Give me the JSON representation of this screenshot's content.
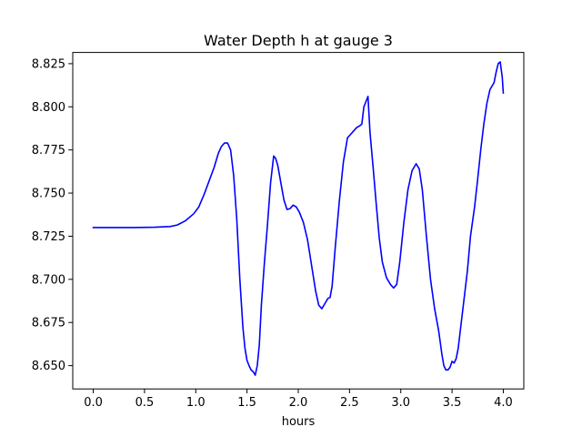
{
  "chart_data": {
    "type": "line",
    "title": "Water Depth h at gauge 3",
    "xlabel": "hours",
    "ylabel": "",
    "xlim": [
      -0.2,
      4.2
    ],
    "ylim": [
      8.6365,
      8.8315
    ],
    "grid": false,
    "legend": "none",
    "x_ticks": [
      0.0,
      0.5,
      1.0,
      1.5,
      2.0,
      2.5,
      3.0,
      3.5,
      4.0
    ],
    "x_tick_labels": [
      "0.0",
      "0.5",
      "1.0",
      "1.5",
      "2.0",
      "2.5",
      "3.0",
      "3.5",
      "4.0"
    ],
    "y_ticks": [
      8.65,
      8.675,
      8.7,
      8.725,
      8.75,
      8.775,
      8.8,
      8.825
    ],
    "y_tick_labels": [
      "8.650",
      "8.675",
      "8.700",
      "8.725",
      "8.750",
      "8.775",
      "8.800",
      "8.825"
    ],
    "series": [
      {
        "color": "#0000ff",
        "points": [
          [
            0.0,
            8.73
          ],
          [
            0.2,
            8.73
          ],
          [
            0.4,
            8.73
          ],
          [
            0.6,
            8.7302
          ],
          [
            0.75,
            8.7306
          ],
          [
            0.82,
            8.7315
          ],
          [
            0.9,
            8.734
          ],
          [
            0.98,
            8.738
          ],
          [
            1.03,
            8.742
          ],
          [
            1.08,
            8.749
          ],
          [
            1.13,
            8.757
          ],
          [
            1.18,
            8.765
          ],
          [
            1.22,
            8.773
          ],
          [
            1.25,
            8.777
          ],
          [
            1.28,
            8.779
          ],
          [
            1.31,
            8.779
          ],
          [
            1.34,
            8.775
          ],
          [
            1.37,
            8.76
          ],
          [
            1.4,
            8.735
          ],
          [
            1.43,
            8.7
          ],
          [
            1.46,
            8.672
          ],
          [
            1.48,
            8.66
          ],
          [
            1.5,
            8.653
          ],
          [
            1.52,
            8.65
          ],
          [
            1.54,
            8.6475
          ],
          [
            1.56,
            8.6465
          ],
          [
            1.58,
            8.6445
          ],
          [
            1.6,
            8.65
          ],
          [
            1.62,
            8.662
          ],
          [
            1.64,
            8.685
          ],
          [
            1.67,
            8.71
          ],
          [
            1.7,
            8.732
          ],
          [
            1.73,
            8.756
          ],
          [
            1.76,
            8.7715
          ],
          [
            1.78,
            8.77
          ],
          [
            1.8,
            8.766
          ],
          [
            1.83,
            8.756
          ],
          [
            1.86,
            8.746
          ],
          [
            1.89,
            8.7405
          ],
          [
            1.92,
            8.741
          ],
          [
            1.95,
            8.743
          ],
          [
            1.98,
            8.742
          ],
          [
            2.01,
            8.739
          ],
          [
            2.05,
            8.733
          ],
          [
            2.09,
            8.723
          ],
          [
            2.13,
            8.708
          ],
          [
            2.17,
            8.693
          ],
          [
            2.2,
            8.685
          ],
          [
            2.23,
            8.683
          ],
          [
            2.26,
            8.686
          ],
          [
            2.29,
            8.689
          ],
          [
            2.31,
            8.6895
          ],
          [
            2.33,
            8.696
          ],
          [
            2.36,
            8.718
          ],
          [
            2.4,
            8.745
          ],
          [
            2.44,
            8.768
          ],
          [
            2.48,
            8.782
          ],
          [
            2.51,
            8.784
          ],
          [
            2.54,
            8.786
          ],
          [
            2.57,
            8.788
          ],
          [
            2.6,
            8.789
          ],
          [
            2.62,
            8.79
          ],
          [
            2.64,
            8.8
          ],
          [
            2.66,
            8.803
          ],
          [
            2.68,
            8.806
          ],
          [
            2.7,
            8.785
          ],
          [
            2.73,
            8.765
          ],
          [
            2.76,
            8.744
          ],
          [
            2.79,
            8.724
          ],
          [
            2.82,
            8.71
          ],
          [
            2.86,
            8.701
          ],
          [
            2.9,
            8.697
          ],
          [
            2.93,
            8.695
          ],
          [
            2.96,
            8.697
          ],
          [
            2.99,
            8.71
          ],
          [
            3.03,
            8.733
          ],
          [
            3.07,
            8.752
          ],
          [
            3.11,
            8.763
          ],
          [
            3.15,
            8.767
          ],
          [
            3.18,
            8.764
          ],
          [
            3.21,
            8.752
          ],
          [
            3.25,
            8.725
          ],
          [
            3.29,
            8.7
          ],
          [
            3.33,
            8.683
          ],
          [
            3.37,
            8.67
          ],
          [
            3.4,
            8.657
          ],
          [
            3.42,
            8.65
          ],
          [
            3.44,
            8.6475
          ],
          [
            3.46,
            8.6475
          ],
          [
            3.48,
            8.649
          ],
          [
            3.5,
            8.6525
          ],
          [
            3.52,
            8.6515
          ],
          [
            3.54,
            8.654
          ],
          [
            3.56,
            8.66
          ],
          [
            3.58,
            8.67
          ],
          [
            3.6,
            8.68
          ],
          [
            3.62,
            8.69
          ],
          [
            3.65,
            8.705
          ],
          [
            3.68,
            8.725
          ],
          [
            3.72,
            8.742
          ],
          [
            3.75,
            8.758
          ],
          [
            3.78,
            8.775
          ],
          [
            3.81,
            8.79
          ],
          [
            3.84,
            8.802
          ],
          [
            3.87,
            8.81
          ],
          [
            3.89,
            8.812
          ],
          [
            3.91,
            8.814
          ],
          [
            3.93,
            8.82
          ],
          [
            3.95,
            8.825
          ],
          [
            3.97,
            8.826
          ],
          [
            3.99,
            8.817
          ],
          [
            4.0,
            8.808
          ]
        ]
      }
    ]
  }
}
